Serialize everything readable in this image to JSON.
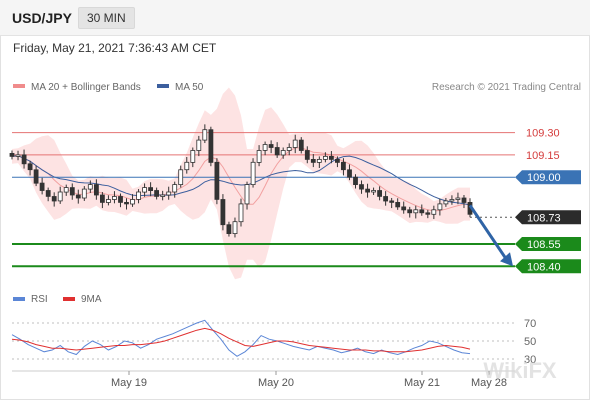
{
  "header": {
    "pair": "USD/JPY",
    "timeframe": "30 MIN",
    "timestamp": "Friday, May 21, 2021 7:36:43 AM CET"
  },
  "legend": {
    "items": [
      {
        "label": "MA 20 + Bollinger Bands",
        "color": "#f08c8c"
      },
      {
        "label": "MA 50",
        "color": "#3c5f9e"
      }
    ],
    "copyright": "Research © 2021 Trading Central"
  },
  "rsi_legend": {
    "items": [
      {
        "label": "RSI",
        "color": "#5b86d6"
      },
      {
        "label": "9MA",
        "color": "#e03030"
      }
    ]
  },
  "watermark": "WikiFX",
  "colors": {
    "resistance": "#e57373",
    "pivot": "#3a73b5",
    "support": "#1b8a1b",
    "current": "#2b2b2b",
    "arrow": "#2f64a6",
    "band_fill": "#fde0e0",
    "candle": "#333333"
  },
  "chart_data": [
    {
      "type": "candlestick",
      "series": "USD/JPY 30 min",
      "x_ticks": [
        "May 19",
        "May 20",
        "May 21",
        "May 28"
      ],
      "ylim": [
        108.24,
        109.52
      ],
      "price_path": [
        109.14,
        109.15,
        109.09,
        109.05,
        108.96,
        108.91,
        108.87,
        108.84,
        108.9,
        108.93,
        108.88,
        108.86,
        108.92,
        108.95,
        108.88,
        108.83,
        108.85,
        108.87,
        108.83,
        108.82,
        108.85,
        108.9,
        108.93,
        108.91,
        108.87,
        108.88,
        108.9,
        108.95,
        109.05,
        109.1,
        109.18,
        109.25,
        109.32,
        109.1,
        108.85,
        108.68,
        108.62,
        108.7,
        108.82,
        108.95,
        109.1,
        109.18,
        109.22,
        109.2,
        109.15,
        109.18,
        109.2,
        109.25,
        109.18,
        109.12,
        109.1,
        109.12,
        109.14,
        109.12,
        109.1,
        109.05,
        109.0,
        108.95,
        108.92,
        108.9,
        108.91,
        108.87,
        108.84,
        108.83,
        108.8,
        108.78,
        108.76,
        108.78,
        108.76,
        108.75,
        108.78,
        108.82,
        108.84,
        108.85,
        108.86,
        108.83,
        108.75
      ],
      "levels": [
        {
          "value": 109.3,
          "label": "109.30",
          "kind": "resistance"
        },
        {
          "value": 109.15,
          "label": "109.15",
          "kind": "resistance"
        },
        {
          "value": 109.0,
          "label": "109.00",
          "kind": "pivot"
        },
        {
          "value": 108.73,
          "label": "108.73",
          "kind": "current"
        },
        {
          "value": 108.55,
          "label": "108.55",
          "kind": "support"
        },
        {
          "value": 108.4,
          "label": "108.40",
          "kind": "support"
        }
      ],
      "forecast": {
        "from": 108.81,
        "to": 108.4,
        "direction": "down"
      }
    },
    {
      "type": "line",
      "series_names": [
        "RSI",
        "9MA"
      ],
      "ylim": [
        20,
        80
      ],
      "y_ticks": [
        70,
        50,
        30
      ],
      "rsi": [
        57,
        52,
        46,
        42,
        38,
        40,
        45,
        38,
        35,
        44,
        50,
        46,
        40,
        44,
        50,
        48,
        42,
        46,
        52,
        55,
        58,
        62,
        66,
        70,
        73,
        62,
        52,
        40,
        33,
        38,
        46,
        56,
        52,
        50,
        47,
        44,
        42,
        40,
        44,
        42,
        40,
        37,
        39,
        42,
        38,
        36,
        40,
        37,
        35,
        38,
        42,
        45,
        50,
        48,
        44,
        40,
        37,
        36
      ],
      "ma9": [
        52,
        51,
        49,
        46,
        44,
        42,
        42,
        41,
        40,
        41,
        42,
        43,
        44,
        45,
        45,
        46,
        46,
        47,
        48,
        50,
        53,
        56,
        59,
        62,
        64,
        62,
        58,
        53,
        49,
        45,
        44,
        46,
        48,
        50,
        50,
        49,
        47,
        45,
        44,
        43,
        42,
        41,
        40,
        40,
        40,
        39,
        39,
        38,
        38,
        38,
        39,
        40,
        42,
        44,
        45,
        44,
        43,
        41
      ]
    }
  ]
}
